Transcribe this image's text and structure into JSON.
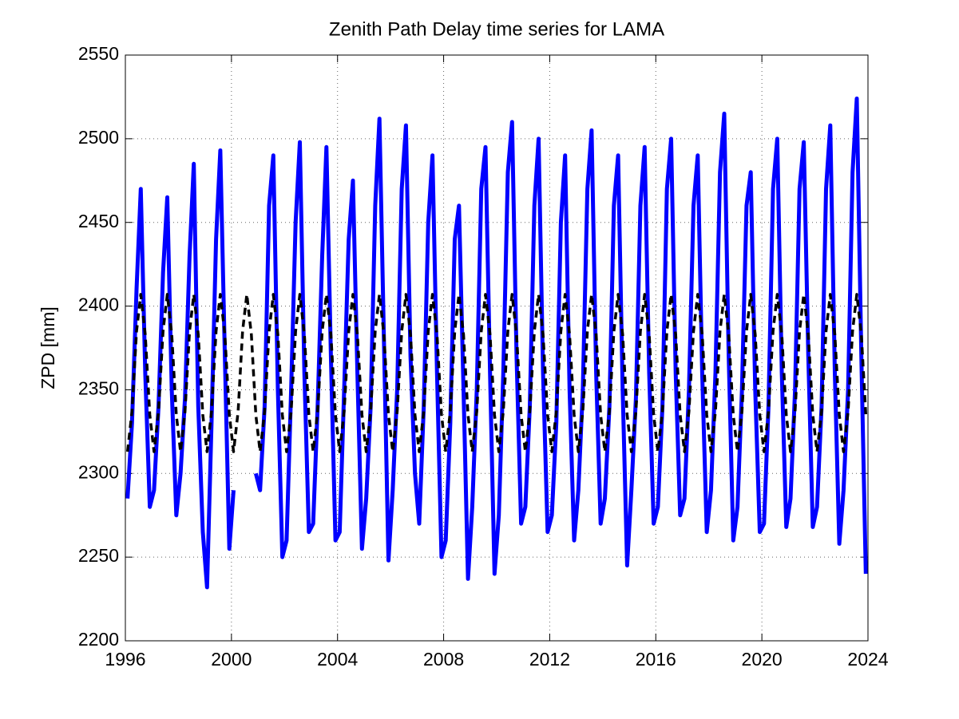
{
  "chart_data": {
    "type": "line",
    "title": "Zenith Path Delay time series for LAMA",
    "y_label": "ZPD [mm]",
    "x": [
      1996.08,
      1996.25,
      1996.42,
      1996.58,
      1996.75,
      1996.92,
      1997.08,
      1997.25,
      1997.42,
      1997.58,
      1997.75,
      1997.92,
      1998.08,
      1998.25,
      1998.42,
      1998.58,
      1998.75,
      1998.92,
      1999.08,
      1999.25,
      1999.42,
      1999.58,
      1999.75,
      1999.92,
      2000.08,
      2000.25,
      2000.42,
      2000.58,
      2000.75,
      2000.92,
      2001.08,
      2001.25,
      2001.42,
      2001.58,
      2001.75,
      2001.92,
      2002.08,
      2002.25,
      2002.42,
      2002.58,
      2002.75,
      2002.92,
      2003.08,
      2003.25,
      2003.42,
      2003.58,
      2003.75,
      2003.92,
      2004.08,
      2004.25,
      2004.42,
      2004.58,
      2004.75,
      2004.92,
      2005.08,
      2005.25,
      2005.42,
      2005.58,
      2005.75,
      2005.92,
      2006.08,
      2006.25,
      2006.42,
      2006.58,
      2006.75,
      2006.92,
      2007.08,
      2007.25,
      2007.42,
      2007.58,
      2007.75,
      2007.92,
      2008.08,
      2008.25,
      2008.42,
      2008.58,
      2008.75,
      2008.92,
      2009.08,
      2009.25,
      2009.42,
      2009.58,
      2009.75,
      2009.92,
      2010.08,
      2010.25,
      2010.42,
      2010.58,
      2010.75,
      2010.92,
      2011.08,
      2011.25,
      2011.42,
      2011.58,
      2011.75,
      2011.92,
      2012.08,
      2012.25,
      2012.42,
      2012.58,
      2012.75,
      2012.92,
      2013.08,
      2013.25,
      2013.42,
      2013.58,
      2013.75,
      2013.92,
      2014.08,
      2014.25,
      2014.42,
      2014.58,
      2014.75,
      2014.92,
      2015.08,
      2015.25,
      2015.42,
      2015.58,
      2015.75,
      2015.92,
      2016.08,
      2016.25,
      2016.42,
      2016.58,
      2016.75,
      2016.92,
      2017.08,
      2017.25,
      2017.42,
      2017.58,
      2017.75,
      2017.92,
      2018.08,
      2018.25,
      2018.42,
      2018.58,
      2018.75,
      2018.92,
      2019.08,
      2019.25,
      2019.42,
      2019.58,
      2019.75,
      2019.92,
      2020.08,
      2020.25,
      2020.42,
      2020.58,
      2020.75,
      2020.92,
      2021.08,
      2021.25,
      2021.42,
      2021.58,
      2021.75,
      2021.92,
      2022.08,
      2022.25,
      2022.42,
      2022.58,
      2022.75,
      2022.92,
      2023.08,
      2023.25,
      2023.42,
      2023.58,
      2023.75,
      2023.92
    ],
    "series": [
      {
        "color": "#0000ff",
        "line_style": "solid",
        "values": [
          2285,
          2330,
          2410,
          2470,
          2360,
          2280,
          2290,
          2340,
          2420,
          2465,
          2350,
          2275,
          2300,
          2345,
          2430,
          2485,
          2340,
          2265,
          2232,
          2330,
          2440,
          2493,
          2370,
          2255,
          2290,
          null,
          null,
          null,
          null,
          2300,
          2290,
          2340,
          2460,
          2490,
          2350,
          2250,
          2260,
          2350,
          2450,
          2498,
          2360,
          2265,
          2270,
          2340,
          2430,
          2495,
          2370,
          2260,
          2265,
          2350,
          2440,
          2475,
          2360,
          2255,
          2285,
          2340,
          2460,
          2512,
          2380,
          2248,
          2290,
          2350,
          2470,
          2508,
          2370,
          2300,
          2270,
          2340,
          2450,
          2490,
          2360,
          2250,
          2260,
          2330,
          2440,
          2460,
          2350,
          2237,
          2280,
          2350,
          2470,
          2495,
          2360,
          2240,
          2275,
          2360,
          2480,
          2510,
          2370,
          2270,
          2280,
          2340,
          2460,
          2500,
          2360,
          2265,
          2275,
          2330,
          2450,
          2490,
          2350,
          2260,
          2290,
          2350,
          2470,
          2505,
          2360,
          2270,
          2285,
          2340,
          2460,
          2490,
          2350,
          2245,
          2290,
          2345,
          2460,
          2495,
          2360,
          2270,
          2280,
          2340,
          2470,
          2500,
          2360,
          2275,
          2285,
          2350,
          2460,
          2490,
          2360,
          2265,
          2290,
          2360,
          2480,
          2515,
          2370,
          2260,
          2280,
          2350,
          2460,
          2480,
          2350,
          2265,
          2270,
          2340,
          2470,
          2500,
          2360,
          2268,
          2285,
          2350,
          2470,
          2498,
          2370,
          2268,
          2280,
          2340,
          2470,
          2508,
          2360,
          2258,
          2290,
          2350,
          2480,
          2524,
          2370,
          2240
        ]
      },
      {
        "color": "#000000",
        "line_style": "dashed",
        "values": [
          2313,
          2337,
          2385,
          2407,
          2383,
          2335,
          2313,
          2337,
          2385,
          2407,
          2383,
          2335,
          2313,
          2337,
          2385,
          2407,
          2383,
          2335,
          2313,
          2337,
          2385,
          2407,
          2383,
          2335,
          2313,
          2337,
          2385,
          2407,
          2383,
          2335,
          2313,
          2337,
          2385,
          2407,
          2383,
          2335,
          2313,
          2337,
          2385,
          2407,
          2383,
          2335,
          2313,
          2337,
          2385,
          2407,
          2383,
          2335,
          2313,
          2337,
          2385,
          2407,
          2383,
          2335,
          2313,
          2337,
          2385,
          2407,
          2383,
          2335,
          2313,
          2337,
          2385,
          2407,
          2383,
          2335,
          2313,
          2337,
          2385,
          2407,
          2383,
          2335,
          2313,
          2337,
          2385,
          2407,
          2383,
          2335,
          2313,
          2337,
          2385,
          2407,
          2383,
          2335,
          2313,
          2337,
          2385,
          2407,
          2383,
          2335,
          2313,
          2337,
          2385,
          2407,
          2383,
          2335,
          2313,
          2337,
          2385,
          2407,
          2383,
          2335,
          2313,
          2337,
          2385,
          2407,
          2383,
          2335,
          2313,
          2337,
          2385,
          2407,
          2383,
          2335,
          2313,
          2337,
          2385,
          2407,
          2383,
          2335,
          2313,
          2337,
          2385,
          2407,
          2383,
          2335,
          2313,
          2337,
          2385,
          2407,
          2383,
          2335,
          2313,
          2337,
          2385,
          2407,
          2383,
          2335,
          2313,
          2337,
          2385,
          2407,
          2383,
          2335,
          2313,
          2337,
          2385,
          2407,
          2383,
          2335,
          2313,
          2337,
          2385,
          2407,
          2383,
          2335,
          2313,
          2337,
          2385,
          2407,
          2383,
          2335,
          2313,
          2337,
          2385,
          2407,
          2383,
          2335
        ]
      }
    ],
    "xlim": [
      1996,
      2024
    ],
    "xticks": [
      1996,
      2000,
      2004,
      2008,
      2012,
      2016,
      2020,
      2024
    ],
    "ylim": [
      2200,
      2550
    ],
    "yticks": [
      2200,
      2250,
      2300,
      2350,
      2400,
      2450,
      2500,
      2550
    ],
    "grid": true
  }
}
